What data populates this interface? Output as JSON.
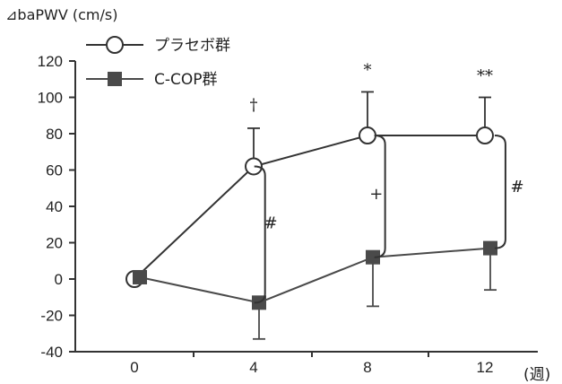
{
  "chart_data": {
    "type": "line",
    "ylabel": "⊿baPWV (cm/s)",
    "x_unit": "(週)",
    "x": [
      0,
      4,
      8,
      12
    ],
    "x_tick_labels": [
      "0",
      "4",
      "8",
      "12"
    ],
    "ylim": [
      -40,
      120
    ],
    "y_ticks": [
      -40,
      -20,
      0,
      20,
      40,
      60,
      80,
      100,
      120
    ],
    "y_tick_labels": [
      "-40",
      "-20",
      "0",
      "20",
      "40",
      "60",
      "80",
      "100",
      "120"
    ],
    "grid": false,
    "legend_position": "top-left",
    "series": [
      {
        "name": "プラセボ群",
        "marker": "open-circle",
        "values": [
          0,
          62,
          79,
          79
        ],
        "error_upper": [
          0,
          83,
          103,
          100
        ],
        "color": "#333333"
      },
      {
        "name": "C-COP群",
        "marker": "filled-square",
        "values": [
          1,
          -13,
          12,
          17
        ],
        "error_lower": [
          1,
          -33,
          -15,
          -6
        ],
        "color": "#4a4a4a"
      }
    ],
    "annotations": [
      {
        "text": "†",
        "x": 4,
        "y": 93
      },
      {
        "text": "*",
        "x": 8,
        "y": 112
      },
      {
        "text": "**",
        "x": 12,
        "y": 109
      },
      {
        "text": "#",
        "x": 4.6,
        "y": 28
      },
      {
        "text": "+",
        "x": 8.3,
        "y": 44
      },
      {
        "text": "#",
        "x": 13.1,
        "y": 48
      }
    ],
    "brackets": [
      {
        "x": 4.4,
        "y_from": 62,
        "y_to": -13,
        "label": "#"
      },
      {
        "x": 8.6,
        "y_from": 79,
        "y_to": 12,
        "label": "+"
      },
      {
        "x": 12.7,
        "y_from": 79,
        "y_to": 17,
        "label": "#"
      }
    ]
  }
}
